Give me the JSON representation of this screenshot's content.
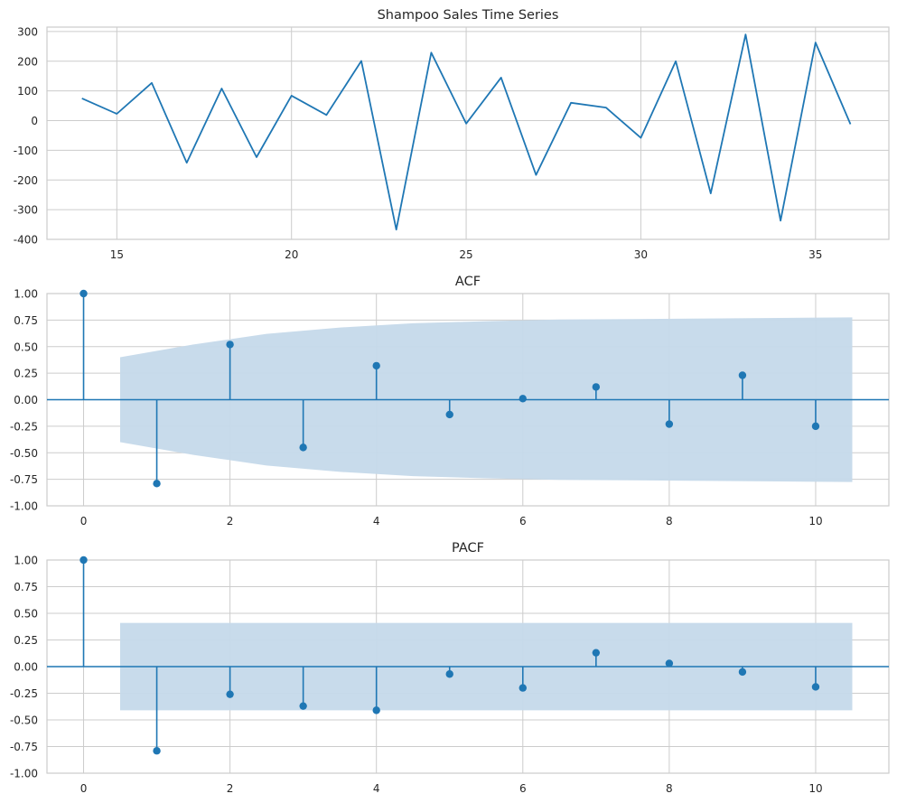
{
  "colors": {
    "series": "#1f77b4",
    "band": "#c5d9ea",
    "grid": "#cccccc",
    "axes": "#cccccc",
    "text": "#262626",
    "background": "#ffffff"
  },
  "chart_data": [
    {
      "type": "line",
      "title": "Shampoo Sales Time Series",
      "xlabel": "",
      "ylabel": "",
      "xlim": [
        13,
        37.1
      ],
      "ylim": [
        -400,
        315
      ],
      "xticks": [
        15,
        20,
        25,
        30,
        35
      ],
      "yticks": [
        -400,
        -300,
        -200,
        -100,
        0,
        100,
        200,
        300
      ],
      "grid": true,
      "x": [
        14,
        15,
        16,
        17,
        18,
        19,
        20,
        21,
        22,
        23,
        24,
        25,
        26,
        27,
        28,
        29,
        30,
        31,
        32,
        33,
        34,
        35,
        36
      ],
      "series": [
        {
          "values": [
            75,
            23,
            127,
            -142,
            108,
            -123,
            84,
            19,
            201,
            -367,
            229,
            -10,
            145,
            -183,
            60,
            44,
            -58,
            200,
            -245,
            290,
            -337,
            263,
            -12
          ]
        }
      ]
    },
    {
      "type": "stem",
      "title": "ACF",
      "xlabel": "",
      "ylabel": "",
      "xlim": [
        -0.5,
        11
      ],
      "ylim": [
        -1.0,
        1.0
      ],
      "xticks": [
        0,
        2,
        4,
        6,
        8,
        10
      ],
      "yticks": [
        -1.0,
        -0.75,
        -0.5,
        -0.25,
        0.0,
        0.25,
        0.5,
        0.75,
        1.0
      ],
      "ytick_labels": [
        "-1.00",
        "-0.75",
        "-0.50",
        "-0.25",
        "0.00",
        "0.25",
        "0.50",
        "0.75",
        "1.00"
      ],
      "grid": true,
      "lags": [
        0,
        1,
        2,
        3,
        4,
        5,
        6,
        7,
        8,
        9,
        10
      ],
      "values": [
        1.0,
        -0.79,
        0.52,
        -0.45,
        0.32,
        -0.14,
        0.01,
        0.12,
        -0.23,
        0.23,
        -0.25
      ],
      "confidence_band": {
        "x": [
          0.5,
          1.5,
          2.5,
          3.5,
          4.5,
          5.5,
          6.5,
          7.5,
          8.5,
          9.5,
          10.5
        ],
        "upper": [
          0.4,
          0.52,
          0.62,
          0.68,
          0.72,
          0.74,
          0.755,
          0.76,
          0.765,
          0.77,
          0.775
        ]
      }
    },
    {
      "type": "stem",
      "title": "PACF",
      "xlabel": "",
      "ylabel": "",
      "xlim": [
        -0.5,
        11
      ],
      "ylim": [
        -1.0,
        1.0
      ],
      "xticks": [
        0,
        2,
        4,
        6,
        8,
        10
      ],
      "yticks": [
        -1.0,
        -0.75,
        -0.5,
        -0.25,
        0.0,
        0.25,
        0.5,
        0.75,
        1.0
      ],
      "ytick_labels": [
        "-1.00",
        "-0.75",
        "-0.50",
        "-0.25",
        "0.00",
        "0.25",
        "0.50",
        "0.75",
        "1.00"
      ],
      "grid": true,
      "lags": [
        0,
        1,
        2,
        3,
        4,
        5,
        6,
        7,
        8,
        9,
        10
      ],
      "values": [
        1.0,
        -0.79,
        -0.26,
        -0.37,
        -0.41,
        -0.07,
        -0.2,
        0.13,
        0.03,
        -0.05,
        -0.19
      ],
      "confidence_band": {
        "x": [
          0.5,
          10.5
        ],
        "upper": [
          0.41,
          0.41
        ]
      }
    }
  ]
}
